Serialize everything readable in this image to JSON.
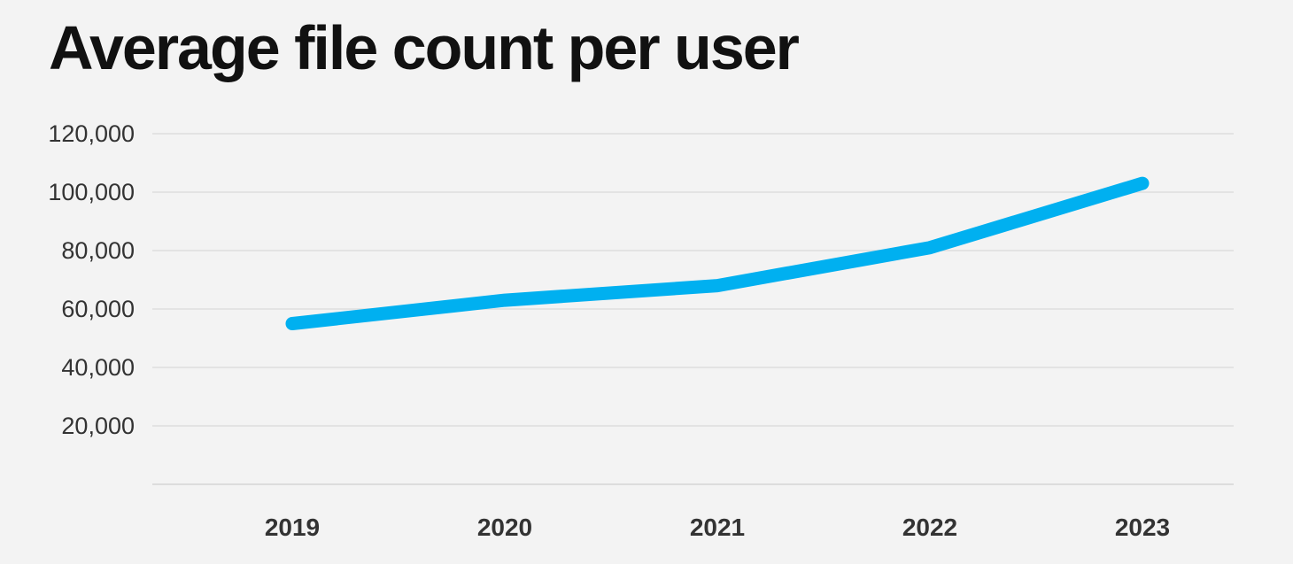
{
  "title": "Average file count per user",
  "chart_data": {
    "type": "line",
    "title": "Average file count per user",
    "categories": [
      "2019",
      "2020",
      "2021",
      "2022",
      "2023"
    ],
    "series": [
      {
        "name": "Average file count per user",
        "values": [
          55000,
          63000,
          68000,
          81000,
          103000
        ]
      }
    ],
    "xlabel": "",
    "ylabel": "",
    "ylim": [
      0,
      120000
    ],
    "yticks": [
      {
        "value": 120000,
        "label": "120,000"
      },
      {
        "value": 100000,
        "label": "100,000"
      },
      {
        "value": 80000,
        "label": "80,000"
      },
      {
        "value": 60000,
        "label": "60,000"
      },
      {
        "value": 40000,
        "label": "40,000"
      },
      {
        "value": 20000,
        "label": "20,000"
      }
    ],
    "grid": true,
    "legend": false,
    "line_color": "#00b0f0",
    "grid_color": "#e3e3e3",
    "axis_color": "#dcdcdc",
    "tick_label_color": "#333333",
    "background_color": "#f3f3f3"
  }
}
